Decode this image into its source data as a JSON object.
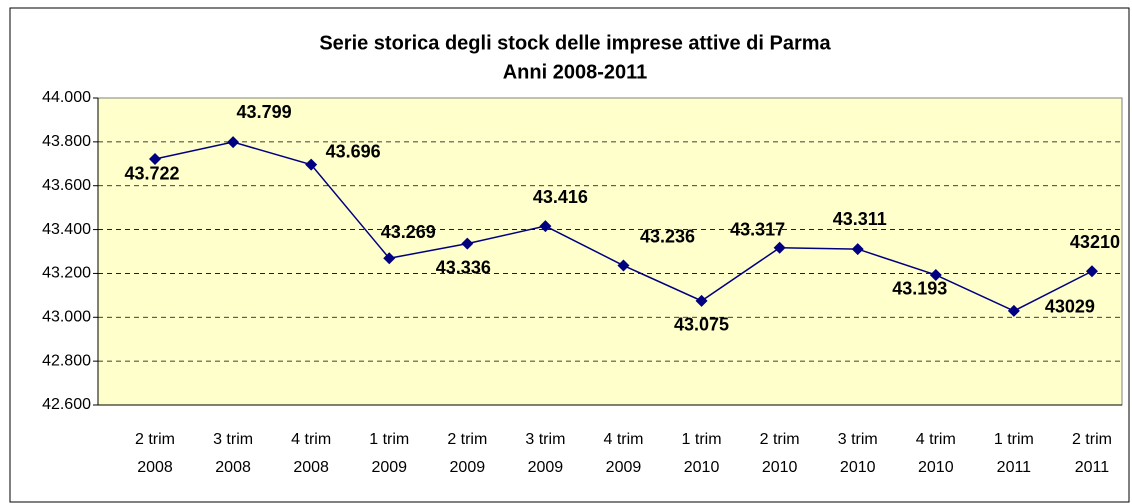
{
  "chart_data": {
    "type": "line",
    "title": "Serie storica degli stock delle imprese attive di Parma",
    "subtitle": "Anni 2008-2011",
    "categories": [
      "2 trim 2008",
      "3 trim 2008",
      "4 trim 2008",
      "1 trim 2009",
      "2 trim 2009",
      "3 trim 2009",
      "4 trim 2009",
      "1 trim 2010",
      "2 trim 2010",
      "3 trim 2010",
      "4 trim 2010",
      "1 trim 2011",
      "2 trim 2011"
    ],
    "values": [
      43722,
      43799,
      43696,
      43269,
      43336,
      43416,
      43236,
      43075,
      43317,
      43311,
      43193,
      43029,
      43210
    ],
    "value_labels": [
      "43.722",
      "43.799",
      "43.696",
      "43.269",
      "43.336",
      "43.416",
      "43.236",
      "43.075",
      "43.317",
      "43.311",
      "43.193",
      "43029",
      "43210"
    ],
    "color": "#000080",
    "ylim": [
      42600,
      44000
    ],
    "yticks": [
      {
        "value": 42600,
        "label": "42.600"
      },
      {
        "value": 42800,
        "label": "42.800"
      },
      {
        "value": 43000,
        "label": "43.000"
      },
      {
        "value": 43200,
        "label": "43.200"
      },
      {
        "value": 43400,
        "label": "43.400"
      },
      {
        "value": 43600,
        "label": "43.600"
      },
      {
        "value": 43800,
        "label": "43.800"
      },
      {
        "value": 44000,
        "label": "44.000"
      }
    ],
    "grid": true
  }
}
